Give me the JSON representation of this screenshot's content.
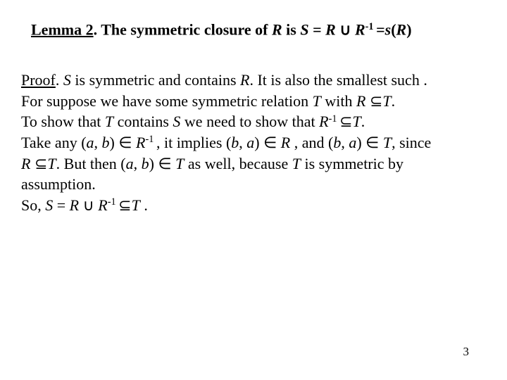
{
  "lemma": {
    "label_ul": "Lemma 2",
    "dot_space": ".  ",
    "text1": "The symmetric closure of ",
    "R1": "R",
    "text2": " is ",
    "S": "S",
    "eq": " = ",
    "R2": "R",
    "sp1": " ",
    "cup": "∪",
    "sp2": " ",
    "R3": "R",
    "sup1": "-1 ",
    "eq2": "=",
    "sR": "s",
    "open": "(",
    "R4": "R",
    "close": ")"
  },
  "proof": {
    "label_ul": "Proof",
    "dot": ". ",
    "S1": "S",
    "l1a": " is symmetric and contains ",
    "R1": "R",
    "l1b": ". It is also the smallest such .",
    "l2a": "For suppose we have some symmetric relation ",
    "T1": "T",
    "l2b": " with ",
    "R2": "R",
    "sp2": " ",
    "sub1": "⊆",
    "T2": "T",
    "l2c": ".",
    "l3a": "To show that ",
    "T3": "T",
    "l3b": " contains ",
    "S2": "S",
    "l3c": " we need to show that ",
    "R3": "R",
    "supA": "-1 ",
    "sub2": "⊆",
    "T4": "T",
    "l3d": ".",
    "l4a": "Take any (",
    "a1": "a",
    "comma1": ", ",
    "b1": "b",
    "l4b": ") ",
    "in1": "∈",
    "sp4": " ",
    "R4": "R",
    "supB": "-1 ",
    "l4c": ", it implies (",
    "b2": "b",
    "comma2": ", ",
    "a2": "a",
    "l4d": ") ",
    "in2": "∈",
    "sp5": " ",
    "R5": "R",
    "l4e": " , and (",
    "b3": "b",
    "comma3": ", ",
    "a3": "a",
    "l4f": ") ",
    "in3": "∈",
    "sp6": " ",
    "T5": "T",
    "l4g": ", since",
    "sp7": " ",
    "R6": "R",
    "sp8": " ",
    "sub3": "⊆",
    "T6": "T",
    "l5a": ". But  then (",
    "a4": "a",
    "comma4": ", ",
    "b4": "b",
    "l5b": ") ",
    "in4": "∈",
    "sp9": " ",
    "T7": "T",
    "l5c": " as well, because ",
    "T8": "T",
    "l5d": " is symmetric by",
    "l6": "assumption.",
    "l7a": "So, ",
    "S3": "S",
    "eq": " = ",
    "R7": "R",
    "sp10": " ",
    "cup": "∪",
    "sp11": " ",
    "R8": "R",
    "supC": "-1 ",
    "sub4": "⊆",
    "T9": "T",
    "l7b": " ."
  },
  "page_number": "3"
}
